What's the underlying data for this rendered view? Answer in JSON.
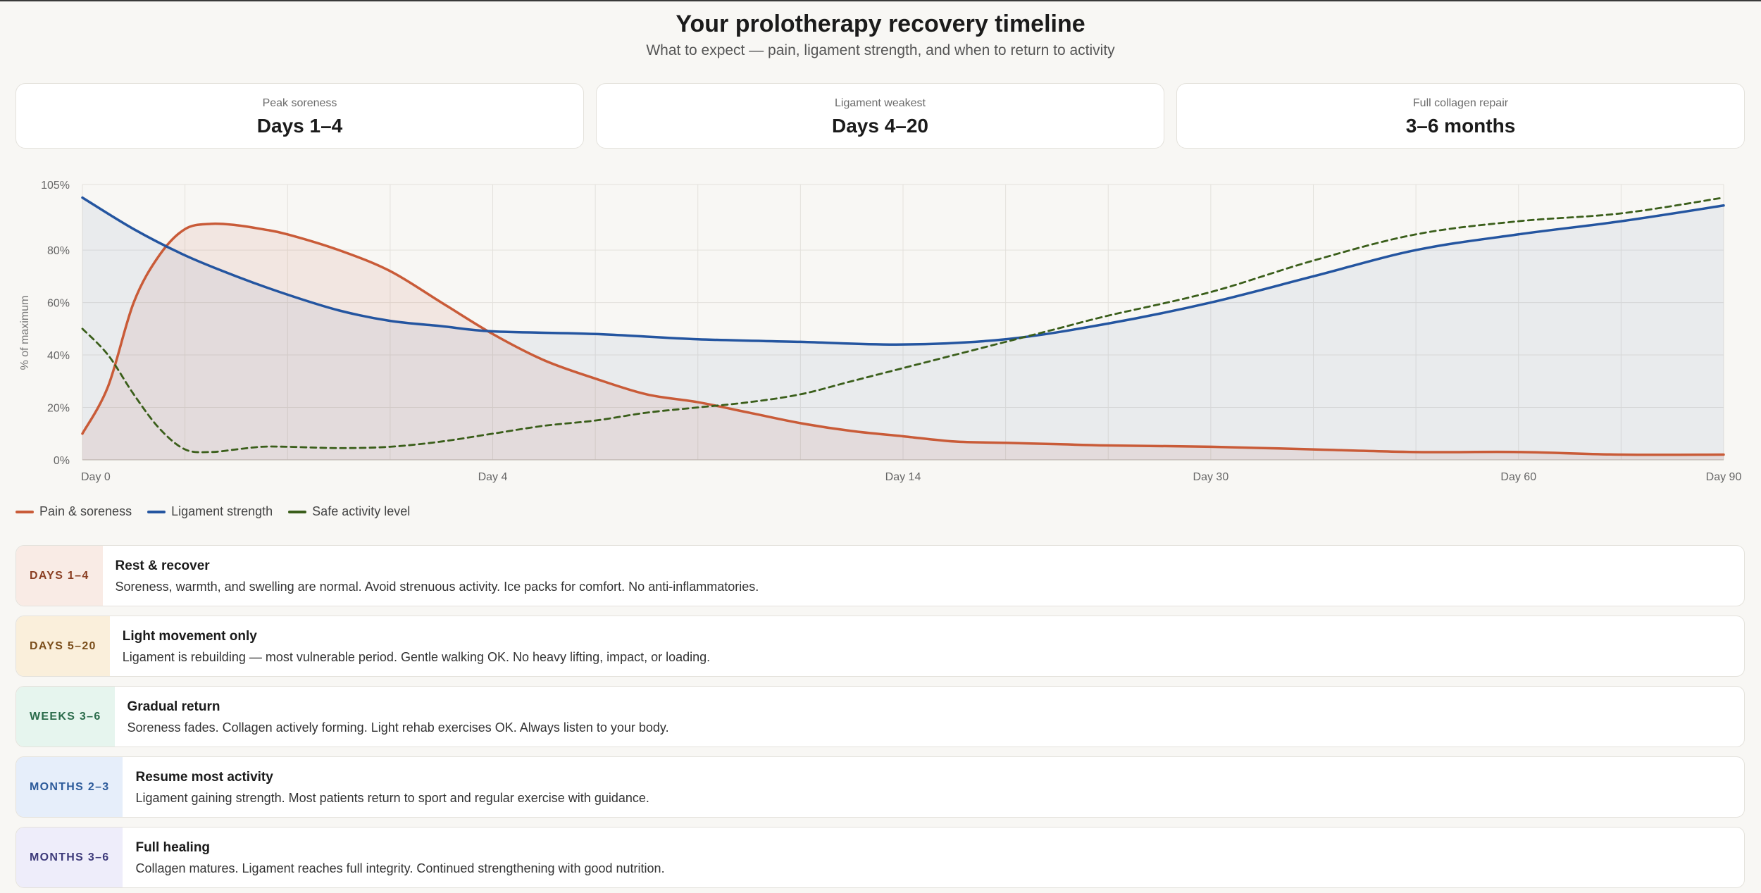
{
  "header": {
    "title": "Your prolotherapy recovery timeline",
    "subtitle": "What to expect — pain, ligament strength, and when to return to activity"
  },
  "cards": [
    {
      "label": "Peak soreness",
      "value": "Days 1–4"
    },
    {
      "label": "Ligament weakest",
      "value": "Days 4–20"
    },
    {
      "label": "Full collagen repair",
      "value": "3–6 months"
    }
  ],
  "chart_data": {
    "type": "line",
    "ylabel": "% of maximum",
    "ylim": [
      0,
      105
    ],
    "y_ticks": [
      0,
      20,
      40,
      60,
      80,
      105
    ],
    "y_tick_labels": [
      "0%",
      "20%",
      "40%",
      "60%",
      "80%",
      "105%"
    ],
    "x_ticks": [
      "Day 0",
      "Day 4",
      "Day 14",
      "Day 30",
      "Day 60",
      "Day 90"
    ],
    "x_tick_positions": [
      0,
      8,
      16,
      22,
      28,
      32
    ],
    "xlim": [
      0,
      32
    ],
    "grid": true,
    "legend_position": "bottom-left",
    "series": [
      {
        "name": "Pain & soreness",
        "color": "#c95b38",
        "dashed": false,
        "fill": "rgba(201,91,56,0.10)",
        "x": [
          0,
          0.5,
          1,
          1.5,
          2,
          2.5,
          3,
          3.5,
          4,
          5,
          6,
          7,
          8,
          9,
          10,
          11,
          12,
          13,
          14,
          15,
          16,
          17,
          18,
          19,
          20,
          22,
          24,
          26,
          28,
          30,
          32
        ],
        "values": [
          10,
          28,
          60,
          78,
          88,
          90,
          89.5,
          88,
          86,
          80,
          72,
          60,
          48,
          38,
          31,
          25,
          22,
          18,
          14,
          11,
          9,
          7,
          6.5,
          6,
          5.5,
          5,
          4,
          3,
          3,
          2,
          2
        ]
      },
      {
        "name": "Ligament strength",
        "color": "#2455a0",
        "dashed": false,
        "fill": "rgba(36,85,160,0.07)",
        "x": [
          0,
          1,
          2,
          3,
          4,
          5,
          6,
          7,
          8,
          10,
          12,
          14,
          16,
          18,
          20,
          22,
          24,
          26,
          28,
          30,
          32
        ],
        "values": [
          100,
          88,
          78,
          70,
          63,
          57,
          53,
          51,
          49,
          48,
          46,
          45,
          44,
          46,
          52,
          60,
          70,
          80,
          86,
          91,
          97
        ]
      },
      {
        "name": "Safe activity level",
        "color": "#3a5e1a",
        "dashed": true,
        "fill": "none",
        "x": [
          0,
          0.5,
          1,
          1.5,
          2,
          2.5,
          3,
          3.5,
          4,
          5,
          6,
          7,
          8,
          9,
          10,
          11,
          12,
          13,
          14,
          15,
          16,
          17,
          18,
          19,
          20,
          22,
          24,
          26,
          28,
          30,
          32
        ],
        "values": [
          50,
          40,
          25,
          12,
          4,
          3,
          4,
          5,
          5,
          4.5,
          5,
          7,
          10,
          13,
          15,
          18,
          20,
          22,
          25,
          30,
          35,
          40,
          45,
          50,
          55,
          64,
          76,
          86,
          91,
          94,
          100
        ]
      }
    ]
  },
  "legend": [
    {
      "label": "Pain & soreness",
      "color": "#c95b38"
    },
    {
      "label": "Ligament strength",
      "color": "#2455a0"
    },
    {
      "label": "Safe activity level",
      "color": "#3a5e1a"
    }
  ],
  "phases": [
    {
      "tag": "DAYS 1–4",
      "tag_bg": "#f9ebe5",
      "tag_color": "#8a3e22",
      "title": "Rest & recover",
      "desc": "Soreness, warmth, and swelling are normal. Avoid strenuous activity. Ice packs for comfort. No anti-inflammatories."
    },
    {
      "tag": "DAYS 5–20",
      "tag_bg": "#faefdb",
      "tag_color": "#7a4d1a",
      "title": "Light movement only",
      "desc": "Ligament is rebuilding — most vulnerable period. Gentle walking OK. No heavy lifting, impact, or loading."
    },
    {
      "tag": "WEEKS 3–6",
      "tag_bg": "#e6f5ee",
      "tag_color": "#2a6b4a",
      "title": "Gradual return",
      "desc": "Soreness fades. Collagen actively forming. Light rehab exercises OK. Always listen to your body."
    },
    {
      "tag": "MONTHS 2–3",
      "tag_bg": "#e6eefa",
      "tag_color": "#2c5a9a",
      "title": "Resume most activity",
      "desc": "Ligament gaining strength. Most patients return to sport and regular exercise with guidance."
    },
    {
      "tag": "MONTHS 3–6",
      "tag_bg": "#eeedfa",
      "tag_color": "#3d3a7a",
      "title": "Full healing",
      "desc": "Collagen matures. Ligament reaches full integrity. Continued strengthening with good nutrition."
    }
  ]
}
